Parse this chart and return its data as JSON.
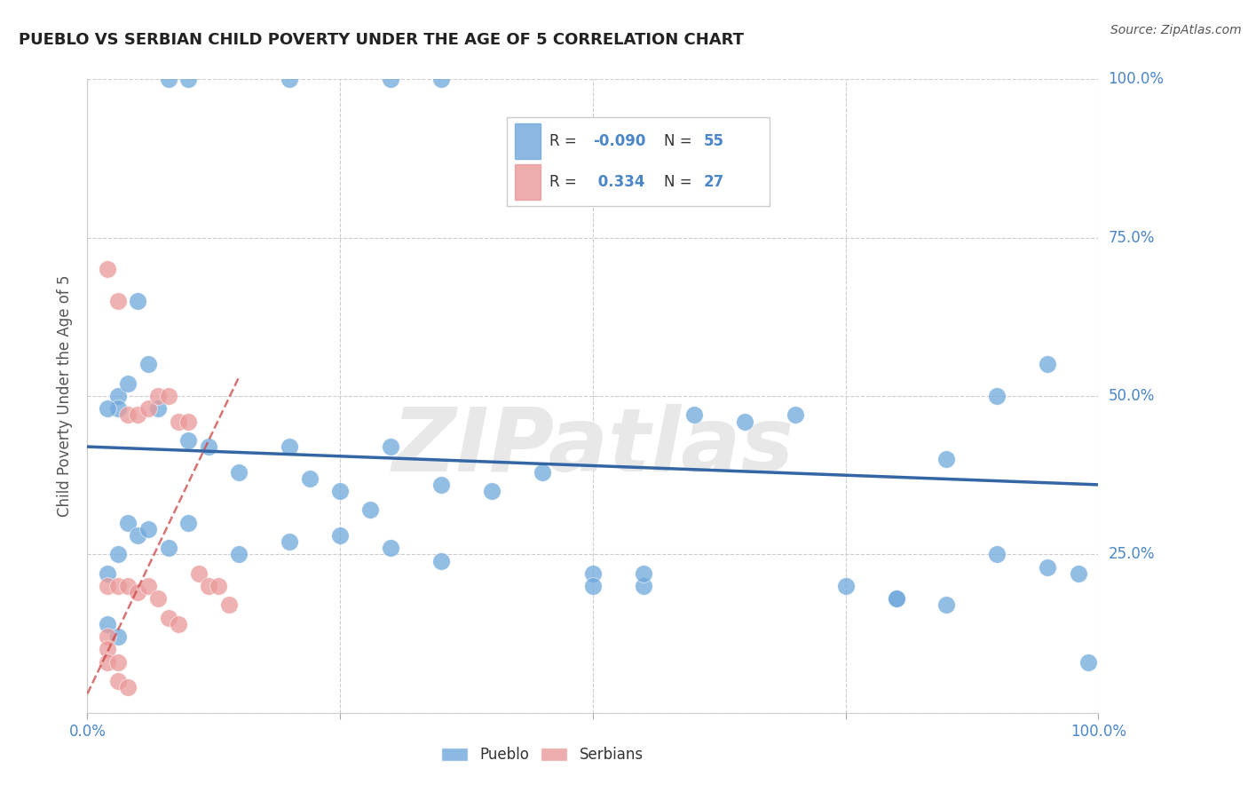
{
  "title": "PUEBLO VS SERBIAN CHILD POVERTY UNDER THE AGE OF 5 CORRELATION CHART",
  "source": "Source: ZipAtlas.com",
  "ylabel_label": "Child Poverty Under the Age of 5",
  "x_range": [
    0,
    100
  ],
  "y_range": [
    0,
    100
  ],
  "grid_ticks_x": [
    0,
    25,
    50,
    75,
    100
  ],
  "grid_ticks_y": [
    0,
    25,
    50,
    75,
    100
  ],
  "pueblo_R": -0.09,
  "pueblo_N": 55,
  "serbian_R": 0.334,
  "serbian_N": 27,
  "pueblo_color": "#6fa8dc",
  "serbian_color": "#ea9999",
  "trend_pueblo_color": "#3465a4",
  "trend_serbian_color": "#cc4444",
  "watermark_text": "ZIPatlas",
  "pueblo_x": [
    8,
    10,
    20,
    30,
    35,
    5,
    6,
    7,
    3,
    3,
    4,
    2,
    10,
    12,
    15,
    20,
    22,
    25,
    28,
    30,
    35,
    40,
    45,
    50,
    55,
    60,
    65,
    70,
    75,
    80,
    85,
    90,
    95,
    10,
    15,
    20,
    25,
    30,
    35,
    2,
    3,
    4,
    5,
    6,
    8,
    50,
    55,
    2,
    3,
    80,
    85,
    90,
    95,
    98,
    99
  ],
  "pueblo_y": [
    100,
    100,
    100,
    100,
    100,
    65,
    55,
    48,
    50,
    48,
    52,
    48,
    43,
    42,
    38,
    42,
    37,
    35,
    32,
    42,
    36,
    35,
    38,
    22,
    20,
    47,
    46,
    47,
    20,
    18,
    40,
    50,
    55,
    30,
    25,
    27,
    28,
    26,
    24,
    22,
    25,
    30,
    28,
    29,
    26,
    20,
    22,
    14,
    12,
    18,
    17,
    25,
    23,
    22,
    8
  ],
  "serbian_x": [
    2,
    3,
    4,
    5,
    6,
    7,
    8,
    9,
    10,
    11,
    12,
    13,
    14,
    2,
    3,
    4,
    5,
    6,
    7,
    8,
    9,
    2,
    2,
    2,
    3,
    3,
    4
  ],
  "serbian_y": [
    70,
    65,
    47,
    47,
    48,
    50,
    50,
    46,
    46,
    22,
    20,
    20,
    17,
    20,
    20,
    20,
    19,
    20,
    18,
    15,
    14,
    12,
    10,
    8,
    8,
    5,
    4
  ],
  "pueblo_trend_y_start": 42,
  "pueblo_trend_y_end": 36,
  "serbian_trend_x0": 0,
  "serbian_trend_y0": 3,
  "serbian_trend_x1": 15,
  "serbian_trend_y1": 53,
  "tick_color": "#4a86c8",
  "label_color": "#555555",
  "grid_color": "#cccccc"
}
